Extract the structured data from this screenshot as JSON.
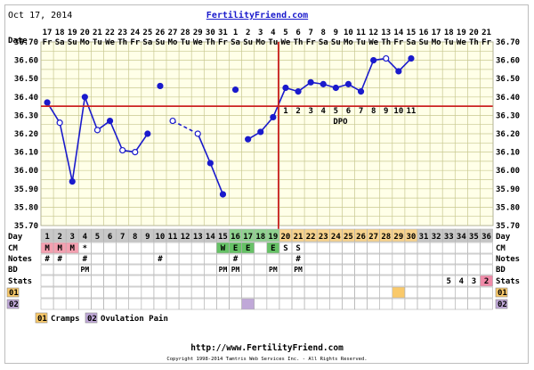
{
  "header": {
    "date": "Oct 17, 2014",
    "site": "FertilityFriend.com"
  },
  "footer": {
    "url": "http://www.FertilityFriend.com",
    "copyright": "Copyright 1998-2014 Tamtris Web Services Inc. - All Rights Reserved."
  },
  "colors": {
    "temp_line": "#1a1acc",
    "coverline": "#cc2222",
    "grid": "#c8c890",
    "chart_bg": "#ffffe8",
    "day_gray": "#c8c8c8",
    "day_orange": "#f7d28c",
    "day_green": "#8fd18f",
    "cm_pink": "#f4a0b0",
    "cm_green": "#66c266",
    "stat_pink": "#f08aa8",
    "stat_orange": "#f9c96a",
    "stat_purple": "#c0a8d8"
  },
  "row_labels": {
    "date": "Date",
    "day": "Day",
    "cm": "CM",
    "notes": "Notes",
    "bd": "BD",
    "stats": "Stats",
    "s01": "01",
    "s02": "02"
  },
  "legend": [
    {
      "code": "01",
      "label": "Cramps",
      "color": "#f9c96a"
    },
    {
      "code": "02",
      "label": "Ovulation Pain",
      "color": "#c0a8d8"
    }
  ],
  "dpo_label": "DPO",
  "dpo_numbers": [
    "1",
    "2",
    "3",
    "4",
    "5",
    "6",
    "7",
    "8",
    "9",
    "10",
    "11"
  ],
  "chart_data": {
    "type": "line",
    "dates": [
      "17",
      "18",
      "19",
      "20",
      "21",
      "22",
      "23",
      "24",
      "25",
      "26",
      "27",
      "28",
      "29",
      "30",
      "31",
      "1",
      "2",
      "3",
      "4",
      "5",
      "6",
      "7",
      "8",
      "9",
      "10",
      "11",
      "12",
      "13",
      "14",
      "15",
      "16",
      "17",
      "18",
      "19",
      "20",
      "21"
    ],
    "weekdays": [
      "Fr",
      "Sa",
      "Su",
      "Mo",
      "Tu",
      "We",
      "Th",
      "Fr",
      "Sa",
      "Su",
      "Mo",
      "Tu",
      "We",
      "Th",
      "Fr",
      "Sa",
      "Su",
      "Mo",
      "Tu",
      "We",
      "Th",
      "Fr",
      "Sa",
      "Su",
      "Mo",
      "Tu",
      "We",
      "Th",
      "Fr",
      "Sa",
      "Su",
      "Mo",
      "Tu",
      "We",
      "Th",
      "Fr"
    ],
    "cycle_days": [
      "1",
      "2",
      "3",
      "4",
      "5",
      "6",
      "7",
      "8",
      "9",
      "10",
      "11",
      "12",
      "13",
      "14",
      "15",
      "16",
      "17",
      "18",
      "19",
      "20",
      "21",
      "22",
      "23",
      "24",
      "25",
      "26",
      "27",
      "28",
      "29",
      "30",
      "31",
      "32",
      "33",
      "34",
      "35",
      "36"
    ],
    "temps": [
      36.37,
      36.26,
      35.94,
      36.4,
      36.22,
      36.27,
      36.11,
      36.1,
      36.2,
      36.46,
      36.27,
      null,
      36.2,
      36.04,
      35.87,
      36.44,
      36.17,
      36.21,
      36.29,
      36.45,
      36.43,
      36.48,
      36.47,
      36.45,
      36.47,
      36.43,
      36.6,
      36.61,
      36.54,
      36.61,
      null,
      null,
      null,
      null,
      null,
      null
    ],
    "open_circle": [
      false,
      true,
      false,
      false,
      true,
      false,
      true,
      true,
      false,
      false,
      true,
      false,
      true,
      false,
      false,
      false,
      false,
      false,
      false,
      false,
      false,
      false,
      false,
      false,
      false,
      false,
      false,
      true,
      false,
      false,
      false,
      false,
      false,
      false,
      false,
      false
    ],
    "connect": [
      true,
      true,
      true,
      true,
      true,
      true,
      true,
      true,
      true,
      false,
      true,
      false,
      true,
      true,
      true,
      false,
      true,
      true,
      true,
      true,
      true,
      true,
      true,
      true,
      true,
      true,
      true,
      true,
      true,
      true,
      false,
      false,
      false,
      false,
      false,
      false
    ],
    "dashed_segments": [
      [
        8,
        10
      ],
      [
        10,
        12
      ],
      [
        14,
        16
      ]
    ],
    "coverline": 36.35,
    "ovulation_day": 19,
    "ylim": [
      35.7,
      36.7
    ],
    "yticks": [
      "36.70",
      "36.60",
      "36.50",
      "36.40",
      "36.30",
      "36.20",
      "36.10",
      "36.00",
      "35.90",
      "35.80",
      "35.70"
    ]
  },
  "cm_row": [
    "M",
    "M",
    "M",
    "*",
    "",
    "",
    "",
    "",
    "",
    "",
    "",
    "",
    "",
    "",
    "W",
    "E",
    "E",
    "",
    "E",
    "S",
    "S",
    "",
    "",
    "",
    "",
    "",
    "",
    "",
    "",
    "",
    "",
    "",
    "",
    "",
    "",
    ""
  ],
  "notes_row": [
    "#",
    "#",
    "",
    "#",
    "",
    "",
    "",
    "",
    "",
    "#",
    "",
    "",
    "",
    "",
    "",
    "#",
    "",
    "",
    "",
    "",
    "#",
    "",
    "",
    "",
    "",
    "",
    "",
    "",
    "",
    "",
    "",
    "",
    "",
    "",
    "",
    ""
  ],
  "bd_row": [
    "",
    "",
    "",
    "PM",
    "",
    "",
    "",
    "",
    "",
    "",
    "",
    "",
    "",
    "",
    "PM",
    "PM",
    "",
    "",
    "PM",
    "",
    "PM",
    "",
    "",
    "",
    "",
    "",
    "",
    "",
    "",
    "",
    "",
    "",
    "",
    "",
    "",
    ""
  ],
  "stats_row": [
    "",
    "",
    "",
    "",
    "",
    "",
    "",
    "",
    "",
    "",
    "",
    "",
    "",
    "",
    "",
    "",
    "",
    "",
    "",
    "",
    "",
    "",
    "",
    "",
    "",
    "",
    "",
    "",
    "",
    "",
    "",
    "",
    "5",
    "4",
    "3",
    "2"
  ]
}
